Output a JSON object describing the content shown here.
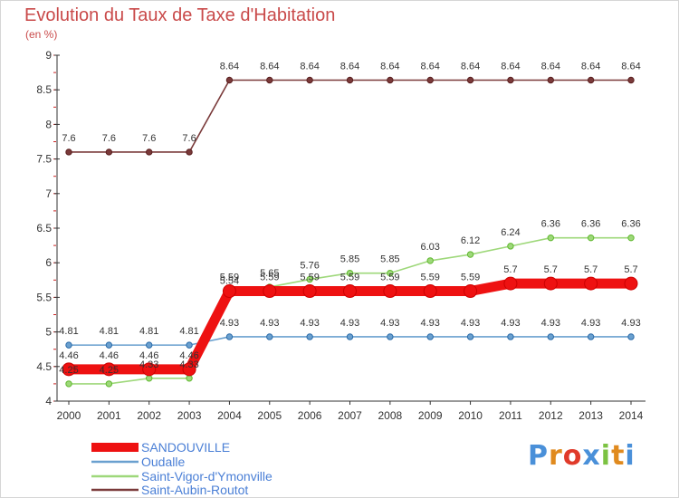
{
  "header": {
    "title": "Evolution du Taux de Taxe d'Habitation",
    "unit": "(en %)"
  },
  "brand": {
    "text": "Proxiti",
    "letter_colors": [
      "#4a90d9",
      "#e08a1e",
      "#e03a2a",
      "#4a90d9",
      "#7cc242",
      "#e08a1e",
      "#4a90d9"
    ]
  },
  "chart_data": {
    "type": "line",
    "x": [
      "2000",
      "2001",
      "2002",
      "2003",
      "2004",
      "2005",
      "2006",
      "2007",
      "2008",
      "2009",
      "2010",
      "2011",
      "2012",
      "2013",
      "2014"
    ],
    "ylim": [
      4,
      9
    ],
    "yticks": [
      "4",
      "4.5",
      "5",
      "5.5",
      "6",
      "6.5",
      "7",
      "7.5",
      "8",
      "8.5",
      "9"
    ],
    "grid": "none",
    "legend_position": "bottom-left",
    "series": [
      {
        "name": "SANDOUVILLE",
        "color": "#ee1111",
        "values": [
          4.46,
          4.46,
          4.46,
          4.46,
          5.59,
          5.59,
          5.59,
          5.59,
          5.59,
          5.59,
          5.59,
          5.7,
          5.7,
          5.7,
          5.7
        ],
        "labels": [
          "4.46",
          "4.46",
          "4.46",
          "4.46",
          "5.59",
          "5.59",
          "5.59",
          "5.59",
          "5.59",
          "5.59",
          "5.59",
          "5.7",
          "5.7",
          "5.7",
          "5.7"
        ]
      },
      {
        "name": "Oudalle",
        "color": "#6aa0cf",
        "values": [
          4.81,
          4.81,
          4.81,
          4.81,
          4.93,
          4.93,
          4.93,
          4.93,
          4.93,
          4.93,
          4.93,
          4.93,
          4.93,
          4.93,
          4.93
        ],
        "labels": [
          "4.81",
          "4.81",
          "4.81",
          "4.81",
          "4.93",
          "4.93",
          "4.93",
          "4.93",
          "4.93",
          "4.93",
          "4.93",
          "4.93",
          "4.93",
          "4.93",
          "4.93"
        ]
      },
      {
        "name": "Saint-Vigor-d'Ymonville",
        "color": "#9ed87a",
        "values": [
          4.25,
          4.25,
          4.33,
          4.33,
          5.54,
          5.65,
          5.76,
          5.85,
          5.85,
          6.03,
          6.12,
          6.24,
          6.36,
          6.36,
          6.36
        ],
        "labels": [
          "4.25",
          "4.25",
          "4.33",
          "4.33",
          "5.54",
          "5.65",
          "5.76",
          "5.85",
          "5.85",
          "6.03",
          "6.12",
          "6.24",
          "6.36",
          "6.36",
          "6.36"
        ]
      },
      {
        "name": "Saint-Aubin-Routot",
        "color": "#7a3a3a",
        "values": [
          7.6,
          7.6,
          7.6,
          7.6,
          8.64,
          8.64,
          8.64,
          8.64,
          8.64,
          8.64,
          8.64,
          8.64,
          8.64,
          8.64,
          8.64
        ],
        "labels": [
          "7.6",
          "7.6",
          "7.6",
          "7.6",
          "8.64",
          "8.64",
          "8.64",
          "8.64",
          "8.64",
          "8.64",
          "8.64",
          "8.64",
          "8.64",
          "8.64",
          "8.64"
        ]
      }
    ]
  }
}
